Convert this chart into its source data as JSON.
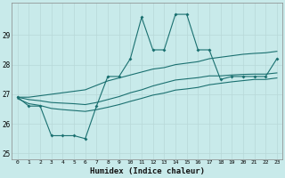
{
  "title": "",
  "xlabel": "Humidex (Indice chaleur)",
  "background_color": "#c8eaea",
  "grid_color": "#b8d8d8",
  "line_color": "#1a7070",
  "xlim": [
    -0.5,
    23.5
  ],
  "ylim": [
    24.8,
    30.1
  ],
  "xticks": [
    0,
    1,
    2,
    3,
    4,
    5,
    6,
    7,
    8,
    9,
    10,
    11,
    12,
    13,
    14,
    15,
    16,
    17,
    18,
    19,
    20,
    21,
    22,
    23
  ],
  "yticks": [
    25,
    26,
    27,
    28,
    29
  ],
  "x": [
    0,
    1,
    2,
    3,
    4,
    5,
    6,
    7,
    8,
    9,
    10,
    11,
    12,
    13,
    14,
    15,
    16,
    17,
    18,
    19,
    20,
    21,
    22,
    23
  ],
  "line_data": [
    26.9,
    26.6,
    26.6,
    25.6,
    25.6,
    25.6,
    25.5,
    26.6,
    27.6,
    27.6,
    28.2,
    29.6,
    28.5,
    28.5,
    29.7,
    29.7,
    28.5,
    28.5,
    27.5,
    27.6,
    27.6,
    27.6,
    27.6,
    28.2
  ],
  "line_upper": [
    26.9,
    26.9,
    26.95,
    27.0,
    27.05,
    27.1,
    27.15,
    27.3,
    27.45,
    27.55,
    27.65,
    27.75,
    27.85,
    27.9,
    28.0,
    28.05,
    28.1,
    28.2,
    28.25,
    28.3,
    28.35,
    28.38,
    28.4,
    28.45
  ],
  "line_mid": [
    26.9,
    26.82,
    26.78,
    26.72,
    26.7,
    26.68,
    26.65,
    26.72,
    26.82,
    26.92,
    27.05,
    27.15,
    27.28,
    27.38,
    27.48,
    27.52,
    27.56,
    27.62,
    27.62,
    27.65,
    27.67,
    27.68,
    27.68,
    27.72
  ],
  "line_lower": [
    26.85,
    26.68,
    26.62,
    26.52,
    26.48,
    26.45,
    26.42,
    26.48,
    26.56,
    26.65,
    26.76,
    26.86,
    26.97,
    27.04,
    27.14,
    27.18,
    27.23,
    27.32,
    27.37,
    27.42,
    27.46,
    27.5,
    27.5,
    27.55
  ]
}
